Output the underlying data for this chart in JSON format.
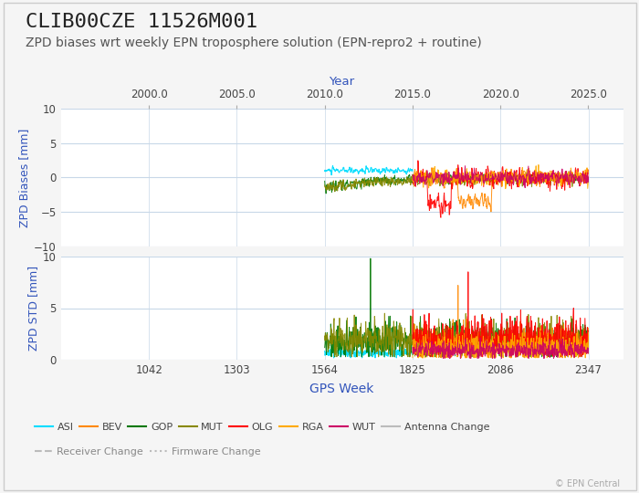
{
  "title": "CLIB00CZE 11526M001",
  "subtitle": "ZPD biases wrt weekly EPN troposphere solution (EPN-repro2 + routine)",
  "xlabel_bottom": "GPS Week",
  "xlabel_top": "Year",
  "ylabel_top": "ZPD Biases [mm]",
  "ylabel_bottom": "ZPD STD [mm]",
  "gps_week_min": 780,
  "gps_week_max": 2450,
  "gps_week_ticks": [
    1042,
    1303,
    1564,
    1825,
    2086,
    2347
  ],
  "year_ticks": [
    2000.0,
    2005.0,
    2010.0,
    2015.0,
    2020.0,
    2025.0
  ],
  "bias_ylim": [
    -10,
    10
  ],
  "std_ylim": [
    0,
    10
  ],
  "bias_yticks": [
    -10,
    -5,
    0,
    5,
    10
  ],
  "std_yticks": [
    0,
    5,
    10
  ],
  "ac_colors": {
    "ASI": "#00ddff",
    "BEV": "#ff8800",
    "GOP": "#007700",
    "MUT": "#888800",
    "OLG": "#ff0000",
    "RGA": "#ffaa00",
    "WUT": "#cc0066"
  },
  "background_color": "#f5f5f5",
  "plot_bg_color": "#ffffff",
  "grid_color": "#c8d8e8",
  "title_fontsize": 16,
  "subtitle_fontsize": 10,
  "axis_label_color": "#3355bb",
  "tick_label_color": "#444444",
  "copyright_text": "© EPN Central",
  "legend_entries": [
    "ASI",
    "BEV",
    "GOP",
    "MUT",
    "OLG",
    "RGA",
    "WUT",
    "Antenna Change",
    "Receiver Change",
    "Firmware Change"
  ],
  "legend_colors": [
    "#00ddff",
    "#ff8800",
    "#007700",
    "#888800",
    "#ff0000",
    "#ffaa00",
    "#cc0066",
    "#bbbbbb",
    "#bbbbbb",
    "#bbbbbb"
  ],
  "legend_styles": [
    "solid",
    "solid",
    "solid",
    "solid",
    "solid",
    "solid",
    "solid",
    "solid",
    "dashed",
    "dotted"
  ]
}
